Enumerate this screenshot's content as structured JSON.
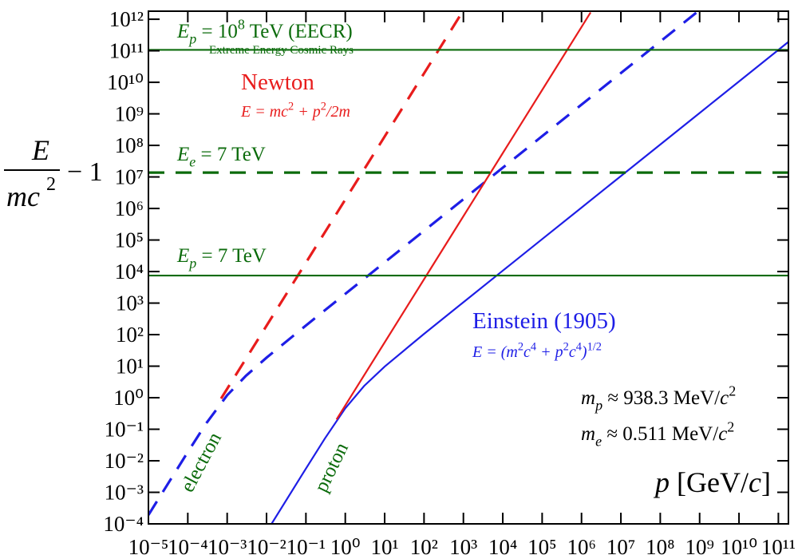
{
  "chart_data": {
    "type": "line",
    "xscale": "log",
    "yscale": "log",
    "xlim": [
      1e-05,
      180000000000.0
    ],
    "ylim": [
      0.0001,
      1800000000000.0
    ],
    "xticks": [
      {
        "value": 1e-05,
        "label": "10⁻⁵"
      },
      {
        "value": 0.0001,
        "label": "10⁻⁴"
      },
      {
        "value": 0.001,
        "label": "10⁻³"
      },
      {
        "value": 0.01,
        "label": "10⁻²"
      },
      {
        "value": 0.1,
        "label": "10⁻¹"
      },
      {
        "value": 1,
        "label": "10⁰"
      },
      {
        "value": 10,
        "label": "10¹"
      },
      {
        "value": 100,
        "label": "10²"
      },
      {
        "value": 1000.0,
        "label": "10³"
      },
      {
        "value": 10000.0,
        "label": "10⁴"
      },
      {
        "value": 100000.0,
        "label": "10⁵"
      },
      {
        "value": 1000000.0,
        "label": "10⁶"
      },
      {
        "value": 10000000.0,
        "label": "10⁷"
      },
      {
        "value": 100000000.0,
        "label": "10⁸"
      },
      {
        "value": 1000000000.0,
        "label": "10⁹"
      },
      {
        "value": 10000000000.0,
        "label": "10¹⁰"
      },
      {
        "value": 100000000000.0,
        "label": "10¹¹"
      }
    ],
    "yticks": [
      {
        "value": 0.0001,
        "label": "10⁻⁴"
      },
      {
        "value": 0.001,
        "label": "10⁻³"
      },
      {
        "value": 0.01,
        "label": "10⁻²"
      },
      {
        "value": 0.1,
        "label": "10⁻¹"
      },
      {
        "value": 1,
        "label": "10⁰"
      },
      {
        "value": 10,
        "label": "10¹"
      },
      {
        "value": 100,
        "label": "10²"
      },
      {
        "value": 1000.0,
        "label": "10³"
      },
      {
        "value": 10000.0,
        "label": "10⁴"
      },
      {
        "value": 100000.0,
        "label": "10⁵"
      },
      {
        "value": 1000000.0,
        "label": "10⁶"
      },
      {
        "value": 10000000.0,
        "label": "10⁷"
      },
      {
        "value": 100000000.0,
        "label": "10⁸"
      },
      {
        "value": 1000000000.0,
        "label": "10⁹"
      },
      {
        "value": 10000000000.0,
        "label": "10¹⁰"
      },
      {
        "value": 100000000000.0,
        "label": "10¹¹"
      },
      {
        "value": 1000000000000.0,
        "label": "10¹²"
      }
    ],
    "ylabel": {
      "numerator": "E",
      "denominator": "mc",
      "exponent": "2",
      "suffix": "− 1"
    },
    "series": [
      {
        "color": "#1e1ee6",
        "dash": true,
        "x": [
          1e-05,
          0.0001,
          0.0003,
          0.001,
          0.003,
          0.01,
          0.1,
          1,
          10,
          100,
          1000.0,
          10000.0,
          100000.0,
          1000000.0,
          10000000.0,
          100000000.0,
          900000000.0
        ],
        "values": [
          0.0001915,
          0.01897,
          0.1596,
          1.1977,
          4.956,
          18.59,
          194.7,
          1956,
          19570.0,
          195700.0,
          1957000.0,
          19570000.0,
          195700000.0,
          1957000000.0,
          19570000000.0,
          195700000000.0,
          1761000000000.0
        ]
      },
      {
        "color": "#e81c1c",
        "dash": true,
        "x": [
          0.0007,
          0.001,
          0.01,
          0.1,
          1,
          10,
          100,
          950
        ],
        "values": [
          0.938,
          1.915,
          191.5,
          19150.0,
          1915000.0,
          191500000.0,
          19150000000.0,
          1728000000000.0
        ]
      },
      {
        "color": "#1e1ee6",
        "dash": false,
        "x": [
          0.0134,
          0.1,
          0.3,
          1,
          3,
          10,
          100,
          1000.0,
          10000.0,
          100000.0,
          1000000.0,
          10000000.0,
          100000000.0,
          1000000000.0,
          10000000000.0,
          100000000000.0,
          180000000000.0
        ],
        "values": [
          0.0001,
          0.00566,
          0.0499,
          0.4615,
          2.35,
          9.705,
          105.58,
          1064.8,
          10657,
          106580.0,
          1065800.0,
          10658000.0,
          106580000.0,
          1065800000.0,
          10658000000.0,
          106580000000.0,
          191800000000.0
        ]
      },
      {
        "color": "#e81c1c",
        "dash": false,
        "x": [
          0.6,
          1,
          10,
          100,
          1000.0,
          10000.0,
          100000.0,
          1000000.0,
          1700000.0
        ],
        "values": [
          0.2045,
          0.568,
          56.8,
          5680,
          568000.0,
          56800000.0,
          5680000000.0,
          568000000000.0,
          1640000000000.0
        ]
      },
      {
        "color": "#0b6b0b",
        "dash": false,
        "x": [
          1e-05,
          180000000000.0
        ],
        "values": [
          107000000000.0,
          107000000000.0
        ]
      },
      {
        "color": "#0b6b0b",
        "dash": true,
        "x": [
          1e-05,
          180000000000.0
        ],
        "values": [
          13700000.0,
          13700000.0
        ]
      },
      {
        "color": "#0b6b0b",
        "dash": false,
        "x": [
          1e-05,
          180000000000.0
        ],
        "values": [
          7460,
          7460
        ]
      }
    ],
    "annotations": [
      {
        "color": "#0b6b0b",
        "parts": [
          [
            "E",
            "i"
          ],
          [
            "p",
            "isub"
          ],
          [
            " = 10",
            ""
          ],
          [
            "8",
            "sup"
          ],
          [
            " TeV (EECR)",
            ""
          ]
        ]
      },
      {
        "color": "#0b6b0b",
        "parts": [
          [
            "Extreme Energy Cosmic Rays",
            ""
          ]
        ]
      },
      {
        "color": "#e81c1c",
        "parts": [
          [
            "Newton",
            ""
          ]
        ]
      },
      {
        "color": "#e81c1c",
        "parts": [
          [
            "E = mc",
            "i"
          ],
          [
            "2",
            "sup"
          ],
          [
            " + p",
            "i"
          ],
          [
            "2",
            "sup"
          ],
          [
            "/2m",
            "i"
          ]
        ]
      },
      {
        "color": "#0b6b0b",
        "parts": [
          [
            "E",
            "i"
          ],
          [
            "e",
            "isub"
          ],
          [
            " = 7 TeV",
            ""
          ]
        ]
      },
      {
        "color": "#0b6b0b",
        "parts": [
          [
            "E",
            "i"
          ],
          [
            "p",
            "isub"
          ],
          [
            " = 7 TeV",
            ""
          ]
        ]
      },
      {
        "color": "#1e1ee6",
        "parts": [
          [
            "Einstein (1905)",
            ""
          ]
        ]
      },
      {
        "color": "#1e1ee6",
        "parts": [
          [
            "E = (m",
            "i"
          ],
          [
            "2",
            "sup"
          ],
          [
            "c",
            "i"
          ],
          [
            "4",
            "sup"
          ],
          [
            " + p",
            "i"
          ],
          [
            "2",
            "sup"
          ],
          [
            "c",
            "i"
          ],
          [
            "4",
            "sup"
          ],
          [
            ")",
            "i"
          ],
          [
            "1/2",
            "sup"
          ]
        ]
      },
      {
        "color": "#000000",
        "parts": [
          [
            "m",
            "i"
          ],
          [
            "p",
            "isub"
          ],
          [
            " ≈ 938.3 MeV/",
            ""
          ],
          [
            "c",
            "i"
          ],
          [
            "2",
            "sup"
          ]
        ]
      },
      {
        "color": "#000000",
        "parts": [
          [
            "m",
            "i"
          ],
          [
            "e",
            "isub"
          ],
          [
            " ≈ 0.511 MeV/",
            ""
          ],
          [
            "c",
            "i"
          ],
          [
            "2",
            "sup"
          ]
        ]
      },
      {
        "color": "#0b6b0b",
        "parts": [
          [
            "electron",
            ""
          ]
        ]
      },
      {
        "color": "#0b6b0b",
        "parts": [
          [
            "proton",
            ""
          ]
        ]
      },
      {
        "color": "#000000",
        "parts": [
          [
            "p",
            "i"
          ],
          [
            " [GeV/",
            ""
          ],
          [
            "c",
            "i"
          ],
          [
            "]",
            ""
          ]
        ]
      }
    ]
  }
}
